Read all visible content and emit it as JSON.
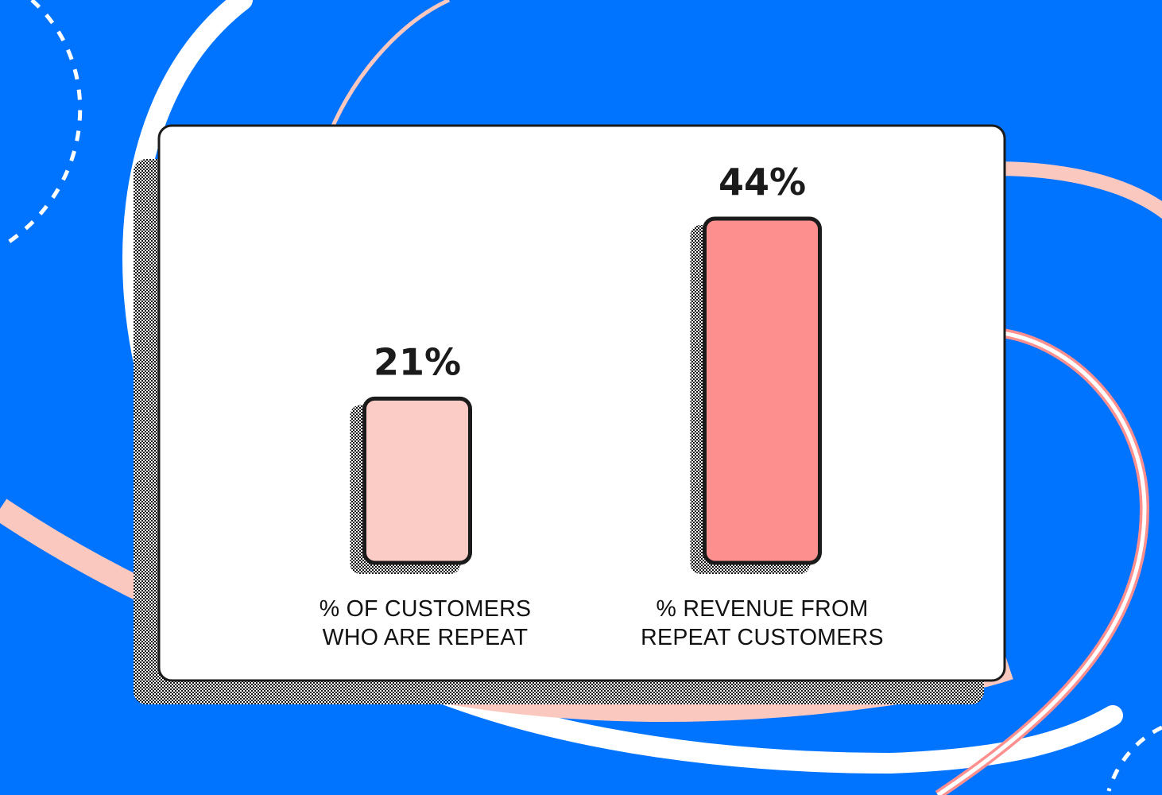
{
  "colors": {
    "background": "#0073ff",
    "card": "#ffffff",
    "outline": "#1b1b1b",
    "ribbon_pink": "#fbc8c0",
    "ribbon_white": "#ffffff",
    "bar_light": "#fbcbc5",
    "bar_dark": "#fe8f8f"
  },
  "chart_data": {
    "type": "bar",
    "title": "",
    "xlabel": "",
    "ylabel": "",
    "ylim": [
      0,
      44
    ],
    "grid": false,
    "unit": "%",
    "categories": [
      [
        "% OF CUSTOMERS",
        "WHO ARE REPEAT"
      ],
      [
        "% REVENUE FROM",
        "REPEAT CUSTOMERS"
      ]
    ],
    "values": [
      21,
      44
    ],
    "data_labels": [
      "21%",
      "44%"
    ],
    "bar_colors": [
      "#fbcbc5",
      "#fe8f8f"
    ]
  }
}
